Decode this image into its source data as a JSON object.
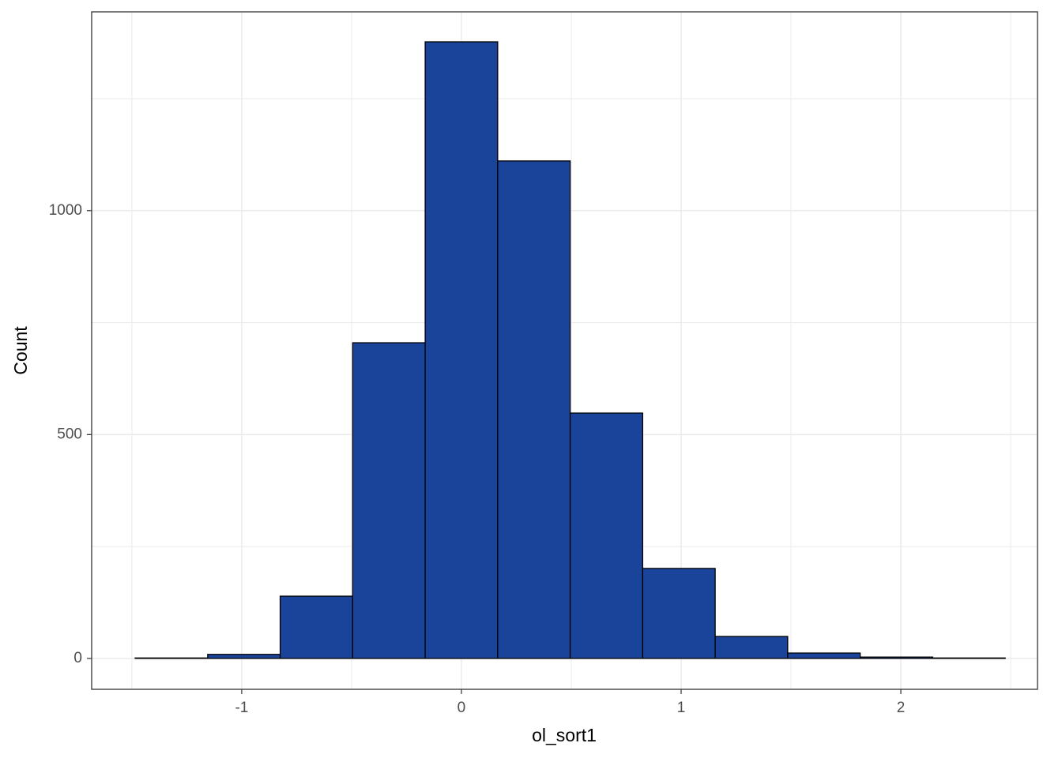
{
  "chart_data": {
    "type": "histogram",
    "x_label": "ol_sort1",
    "y_label": "Count",
    "bins": [
      -1.485,
      -1.155,
      -0.825,
      -0.495,
      -0.165,
      0.165,
      0.495,
      0.825,
      1.155,
      1.485,
      1.815,
      2.145,
      2.475
    ],
    "values": [
      1,
      9,
      139,
      705,
      1377,
      1111,
      548,
      201,
      49,
      12,
      3,
      1
    ],
    "color": "#1a4499",
    "edge_color": "#000000",
    "xlim": [
      -1.683,
      2.622
    ],
    "ylim": [
      -69,
      1444
    ],
    "xticks": [
      -1,
      0,
      1,
      2
    ],
    "yticks": [
      0,
      500,
      1000
    ],
    "x_minor_grid": [
      -1.5,
      -0.5,
      0.5,
      1.5,
      2.5
    ],
    "y_minor_grid": [
      250,
      750,
      1250
    ],
    "grid": true
  }
}
